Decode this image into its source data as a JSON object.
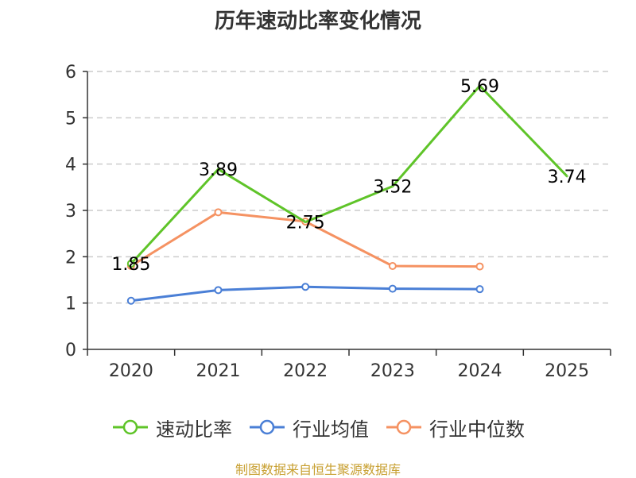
{
  "chart_data": {
    "type": "line",
    "title": "历年速动比率变化情况",
    "categories": [
      "2020",
      "2021",
      "2022",
      "2023",
      "2024",
      "2025"
    ],
    "ylim": [
      0,
      6
    ],
    "yticks": [
      "0",
      "1",
      "2",
      "3",
      "4",
      "5",
      "6"
    ],
    "grid": true,
    "legend_position": "bottom",
    "series": [
      {
        "name": "速动比率",
        "color": "#5fc429",
        "values": [
          1.85,
          3.89,
          2.75,
          3.52,
          5.69,
          3.74
        ],
        "labels": [
          "1.85",
          "3.89",
          "2.75",
          "3.52",
          "5.69",
          "3.74"
        ]
      },
      {
        "name": "行业均值",
        "color": "#4a7fd6",
        "values": [
          1.05,
          1.28,
          1.35,
          1.31,
          1.3,
          null
        ]
      },
      {
        "name": "行业中位数",
        "color": "#f59262",
        "values": [
          1.8,
          2.96,
          2.76,
          1.8,
          1.79,
          null
        ]
      }
    ],
    "source": "制图数据来自恒生聚源数据库"
  }
}
